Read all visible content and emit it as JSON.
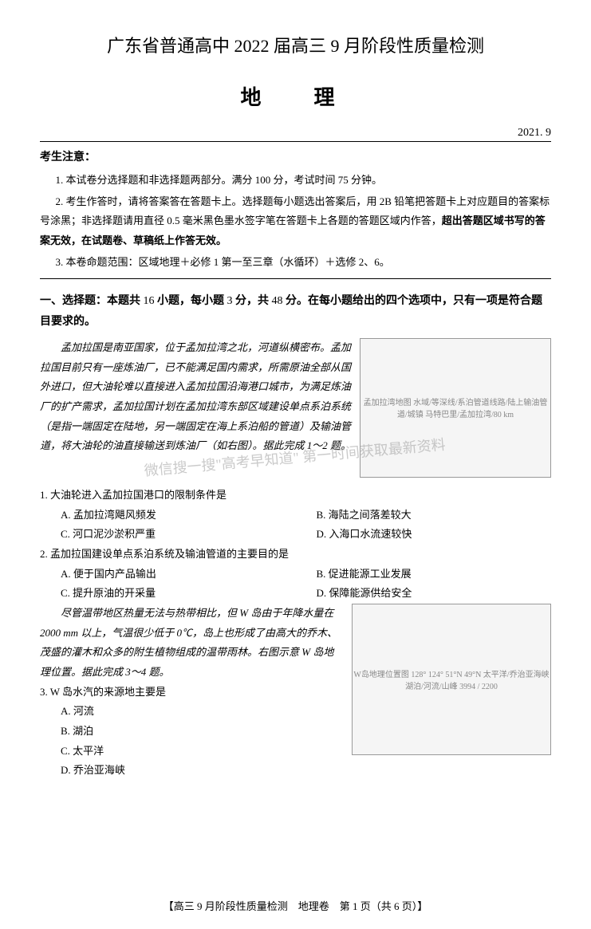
{
  "title": {
    "main": "广东省普通高中 2022 届高三 9 月阶段性质量检测",
    "subject": "地　理",
    "date": "2021. 9"
  },
  "notice": {
    "heading": "考生注意：",
    "items": [
      "1. 本试卷分选择题和非选择题两部分。满分 100 分，考试时间 75 分钟。",
      "2. 考生作答时，请将答案答在答题卡上。选择题每小题选出答案后，用 2B 铅笔把答题卡上对应题目的答案标号涂黑；非选择题请用直径 0.5 毫米黑色墨水签字笔在答题卡上各题的答题区域内作答，",
      "3. 本卷命题范围：区域地理＋必修 1 第一至三章（水循环）＋选修 2、6。"
    ],
    "item2_bold": "超出答题区域书写的答案无效，在试题卷、草稿纸上作答无效。"
  },
  "section1": {
    "title_prefix": "一、选择题：本题共",
    "title_mid": " 16 ",
    "title_mid2": "小题，每小题",
    "title_mid3": " 3 ",
    "title_mid4": "分，共",
    "title_mid5": " 48 ",
    "title_suffix": "分。在每小题给出的四个选项中，只有一项是符合题目要求的。"
  },
  "passage1": "孟加拉国是南亚国家，位于孟加拉湾之北，河道纵横密布。孟加拉国目前只有一座炼油厂，已不能满足国内需求，所需原油全部从国外进口，但大油轮难以直接进入孟加拉国沿海港口城市，为满足炼油厂的扩产需求，孟加拉国计划在孟加拉湾东部区域建设单点系泊系统（是指一端固定在陆地，另一端固定在海上系泊船的管道）及输油管道，将大油轮的油直接输送到炼油厂（如右图）。据此完成 1～2 题。",
  "map1_label": "孟加拉湾地图\n水域/等深线/系泊管道线路/陆上输油管道/城镇\n马特巴里/孟加拉湾/80 km",
  "q1": {
    "stem": "1. 大油轮进入孟加拉国港口的限制条件是",
    "a": "A. 孟加拉湾飓风频发",
    "b": "B. 海陆之间落差较大",
    "c": "C. 河口泥沙淤积严重",
    "d": "D. 入海口水流速较快"
  },
  "q2": {
    "stem": "2. 孟加拉国建设单点系泊系统及输油管道的主要目的是",
    "a": "A. 便于国内产品输出",
    "b": "B. 促进能源工业发展",
    "c": "C. 提升原油的开采量",
    "d": "D. 保障能源供给安全"
  },
  "passage2": "尽管温带地区热量无法与热带相比，但 W 岛由于年降水量在 2000 mm 以上，气温很少低于 0℃，岛上也形成了由高大的乔木、茂盛的灌木和众多的附生植物组成的温带雨林。右图示意 W 岛地理位置。据此完成 3～4 题。",
  "map2_label": "W岛地理位置图\n128° 124° 51°N 49°N\n太平洋/乔治亚海峡\n湖泊/河流/山峰\n3994 / 2200",
  "q3": {
    "stem": "3. W 岛水汽的来源地主要是",
    "a": "A. 河流",
    "b": "B. 湖泊",
    "c": "C. 太平洋",
    "d": "D. 乔治亚海峡"
  },
  "watermark": "微信搜一搜\"高考早知道\"\n第一时间获取最新资料",
  "footer": "【高三 9 月阶段性质量检测　地理卷　第 1 页（共 6 页）】"
}
